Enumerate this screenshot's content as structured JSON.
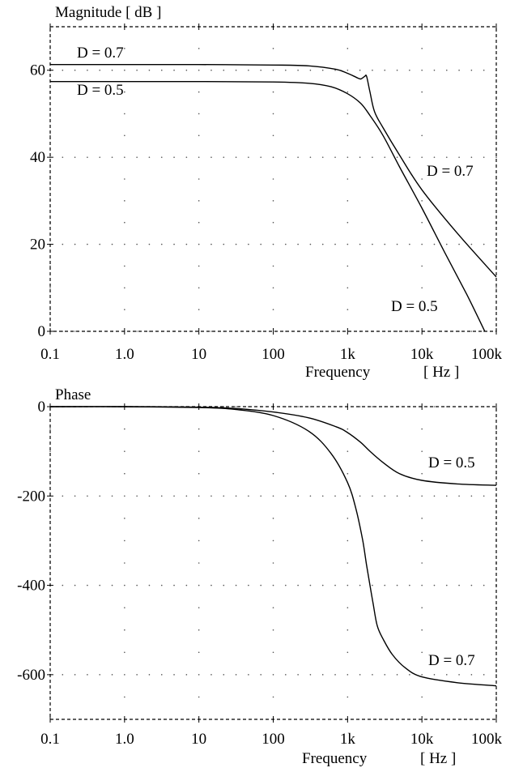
{
  "chart_data": [
    {
      "type": "line",
      "title": "Magnitude   [ dB ]",
      "xlabel": "Frequency",
      "xunit": "[ Hz ]",
      "x_scale": "log",
      "xlim": [
        0.1,
        100000
      ],
      "ylim": [
        0,
        70
      ],
      "x_ticks": [
        0.1,
        1,
        10,
        100,
        1000,
        10000,
        100000
      ],
      "x_tick_labels": [
        "0.1",
        "1.0",
        "10",
        "100",
        "1k",
        "10k",
        "100k"
      ],
      "y_ticks": [
        0,
        20,
        40,
        60
      ],
      "y_tick_labels": [
        "0",
        "20",
        "40",
        "60"
      ],
      "grid": "dotted",
      "series": [
        {
          "name": "D = 0.7",
          "x": [
            0.1,
            1,
            10,
            100,
            300,
            700,
            1000,
            1300,
            1500,
            1700,
            1800,
            2000,
            2300,
            3000,
            5000,
            10000,
            30000,
            100000
          ],
          "y": [
            61.3,
            61.3,
            61.3,
            61.2,
            61.0,
            60.2,
            59.3,
            58.4,
            58.0,
            58.6,
            58.6,
            55.0,
            50.5,
            46.8,
            40.5,
            32.5,
            22.5,
            12.5
          ]
        },
        {
          "name": "D = 0.5",
          "x": [
            0.1,
            1,
            10,
            100,
            300,
            600,
            1000,
            1500,
            2000,
            3000,
            5000,
            10000,
            20000,
            40000,
            70000
          ],
          "y": [
            57.4,
            57.4,
            57.4,
            57.3,
            57.0,
            56.2,
            54.6,
            52.4,
            49.6,
            45.0,
            37.8,
            28.3,
            18.3,
            8.5,
            0
          ]
        }
      ],
      "labels": {
        "d07_left": "D = 0.7",
        "d05_left": "D = 0.5",
        "d07_right": "D = 0.7",
        "d05_right": "D = 0.5"
      }
    },
    {
      "type": "line",
      "title": "Phase",
      "xlabel": "Frequency",
      "xunit": "[ Hz ]",
      "x_scale": "log",
      "xlim": [
        0.1,
        100000
      ],
      "ylim": [
        -700,
        0
      ],
      "x_ticks": [
        0.1,
        1,
        10,
        100,
        1000,
        10000,
        100000
      ],
      "x_tick_labels": [
        "0.1",
        "1.0",
        "10",
        "100",
        "1k",
        "10k",
        "100k"
      ],
      "y_ticks": [
        0,
        -200,
        -400,
        -600
      ],
      "y_tick_labels": [
        "0",
        "-200",
        "-400",
        "-600"
      ],
      "grid": "dotted",
      "series": [
        {
          "name": "D = 0.5",
          "x": [
            0.1,
            1,
            10,
            30,
            100,
            300,
            700,
            1000,
            1500,
            2000,
            3000,
            5000,
            10000,
            30000,
            100000
          ],
          "y": [
            0,
            0,
            -1,
            -4,
            -12,
            -25,
            -45,
            -58,
            -80,
            -100,
            -125,
            -150,
            -165,
            -173,
            -176
          ]
        },
        {
          "name": "D = 0.7",
          "x": [
            0.1,
            1,
            10,
            30,
            100,
            300,
            600,
            1000,
            1300,
            1600,
            1800,
            2000,
            2200,
            2500,
            3000,
            4000,
            6000,
            10000,
            30000,
            100000
          ],
          "y": [
            0,
            0,
            -2,
            -6,
            -20,
            -55,
            -105,
            -170,
            -230,
            -300,
            -355,
            -400,
            -440,
            -490,
            -520,
            -555,
            -585,
            -605,
            -618,
            -625
          ]
        }
      ],
      "labels": {
        "d05_right": "D = 0.5",
        "d07_right": "D = 0.7"
      }
    }
  ]
}
